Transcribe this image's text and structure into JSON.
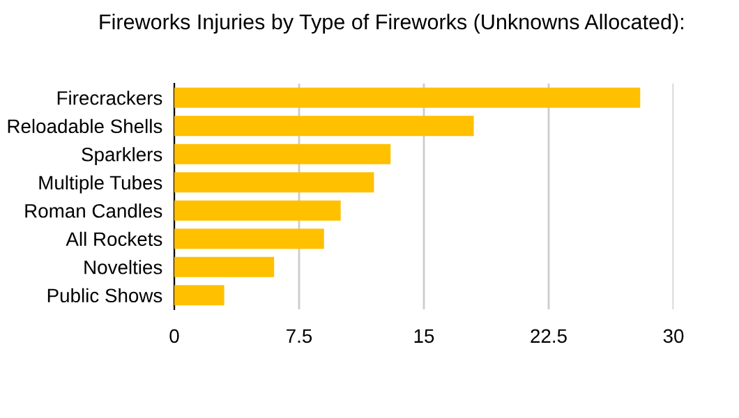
{
  "chart_data": {
    "type": "bar",
    "orientation": "horizontal",
    "title": "Fireworks Injuries by Type of Fireworks (Unknowns Allocated):",
    "categories": [
      "Firecrackers",
      "Reloadable Shells",
      "Sparklers",
      "Multiple Tubes",
      "Roman Candles",
      "All Rockets",
      "Novelties",
      "Public Shows"
    ],
    "values": [
      28,
      18,
      13,
      12,
      10,
      9,
      6,
      3
    ],
    "color": "#ffc000",
    "xlim": [
      0,
      30
    ],
    "xticks": [
      0,
      7.5,
      15,
      22.5,
      30
    ],
    "grid": "x"
  }
}
